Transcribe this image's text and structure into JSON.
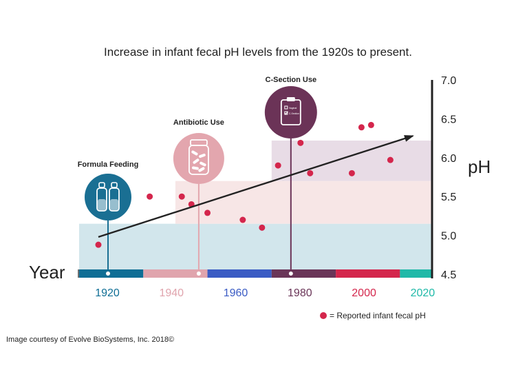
{
  "chart_data": {
    "type": "scatter",
    "title": "Increase in infant fecal pH levels from the 1920s to present.",
    "xlabel": "Year",
    "ylabel": "pH",
    "xlim": [
      1920,
      2030
    ],
    "ylim": [
      4.5,
      7.0
    ],
    "y_ticks": [
      "7.0",
      "6.5",
      "6.0",
      "5.5",
      "5.0",
      "4.5"
    ],
    "eras": [
      {
        "label": "1920",
        "from": 1920,
        "to": 1940,
        "color": "#0f6e95"
      },
      {
        "label": "1940",
        "from": 1940,
        "to": 1960,
        "color": "#e0a4ad"
      },
      {
        "label": "1960",
        "from": 1960,
        "to": 1980,
        "color": "#3a5bc4"
      },
      {
        "label": "1980",
        "from": 1980,
        "to": 2000,
        "color": "#6a3558"
      },
      {
        "label": "2000",
        "from": 2000,
        "to": 2020,
        "color": "#d4264c"
      },
      {
        "label": "2020",
        "from": 2020,
        "to": 2030,
        "color": "#1fb9a8"
      }
    ],
    "bands": [
      {
        "from": 1920,
        "to": 2030,
        "y0": 4.5,
        "y1": 5.15,
        "color": "#d2e6ec"
      },
      {
        "from": 1950,
        "to": 2030,
        "y0": 5.15,
        "y1": 5.7,
        "color": "#f7e6e6"
      },
      {
        "from": 1980,
        "to": 2030,
        "y0": 5.7,
        "y1": 6.22,
        "color": "#e8dce6"
      }
    ],
    "events": [
      {
        "label": "Formula Feeding",
        "year": 1920,
        "color": "#1a6f93",
        "icon": "bottles-icon"
      },
      {
        "label": "Antibiotic Use",
        "year": 1950,
        "color": "#e3a6ae",
        "icon": "pill-jar-icon"
      },
      {
        "label": "C-Section Use",
        "year": 1980,
        "color": "#6b3357",
        "icon": "clipboard-icon"
      }
    ],
    "points": [
      {
        "x": 1926,
        "y": 4.88
      },
      {
        "x": 1942,
        "y": 5.5
      },
      {
        "x": 1952,
        "y": 5.5
      },
      {
        "x": 1955,
        "y": 5.4
      },
      {
        "x": 1960,
        "y": 5.29
      },
      {
        "x": 1971,
        "y": 5.2
      },
      {
        "x": 1977,
        "y": 5.1
      },
      {
        "x": 1982,
        "y": 5.9
      },
      {
        "x": 1989,
        "y": 6.19
      },
      {
        "x": 1992,
        "y": 5.8
      },
      {
        "x": 2005,
        "y": 5.8
      },
      {
        "x": 2008,
        "y": 6.39
      },
      {
        "x": 2011,
        "y": 6.42
      },
      {
        "x": 2017,
        "y": 5.97
      }
    ],
    "trend": {
      "x0": 1926,
      "y0": 4.98,
      "x1": 2024,
      "y1": 6.28
    },
    "point_color": "#d4264c",
    "legend": "= Reported infant fecal pH"
  },
  "credit": "Image courtesy of Evolve BioSystems, Inc. 2018©",
  "icon_text": {
    "tag1": "Vaginal",
    "tag2": "C-Section"
  }
}
